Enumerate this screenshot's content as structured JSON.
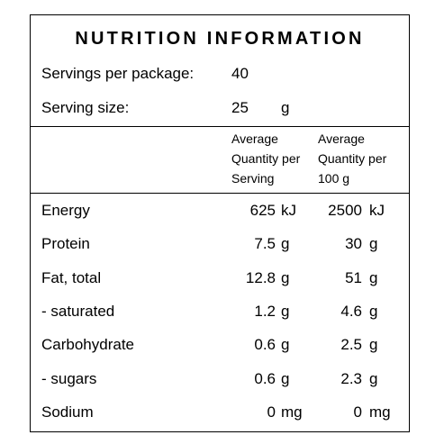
{
  "title": "NUTRITION INFORMATION",
  "servings_per_package": {
    "label": "Servings per package:",
    "value": "40"
  },
  "serving_size": {
    "label": "Serving size:",
    "value": "25",
    "unit": "g"
  },
  "columns": [
    "Average Quantity per Serving",
    "Average Quantity per 100 g"
  ],
  "rows": [
    {
      "name": "Energy",
      "per_serving": "625",
      "per_serving_unit": "kJ",
      "per_100g": "2500",
      "per_100g_unit": "kJ"
    },
    {
      "name": "Protein",
      "per_serving": "7.5",
      "per_serving_unit": "g",
      "per_100g": "30",
      "per_100g_unit": "g"
    },
    {
      "name": "Fat, total",
      "per_serving": "12.8",
      "per_serving_unit": "g",
      "per_100g": "51",
      "per_100g_unit": "g"
    },
    {
      "name": "- saturated",
      "per_serving": "1.2",
      "per_serving_unit": "g",
      "per_100g": "4.6",
      "per_100g_unit": "g"
    },
    {
      "name": "Carbohydrate",
      "per_serving": "0.6",
      "per_serving_unit": "g",
      "per_100g": "2.5",
      "per_100g_unit": "g"
    },
    {
      "name": "- sugars",
      "per_serving": "0.6",
      "per_serving_unit": "g",
      "per_100g": "2.3",
      "per_100g_unit": "g"
    },
    {
      "name": "Sodium",
      "per_serving": "0",
      "per_serving_unit": "mg",
      "per_100g": "0",
      "per_100g_unit": "mg"
    }
  ]
}
